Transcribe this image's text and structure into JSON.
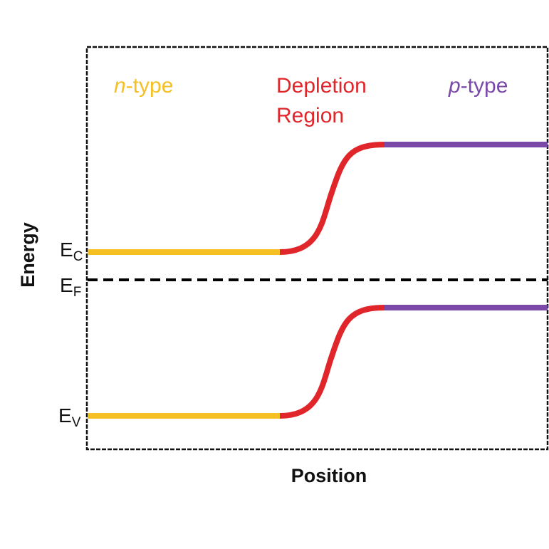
{
  "diagram": {
    "regions": {
      "n_type": {
        "italic_part": "n",
        "rest": "-type"
      },
      "depletion": {
        "line1": "Depletion",
        "line2": "Region"
      },
      "p_type": {
        "italic_part": "p",
        "rest": "-type"
      }
    },
    "axes": {
      "x_label": "Position",
      "y_label": "Energy"
    },
    "levels": {
      "conduction": {
        "main": "E",
        "sub": "C"
      },
      "fermi": {
        "main": "E",
        "sub": "F"
      },
      "valence": {
        "main": "E",
        "sub": "V"
      }
    },
    "colors": {
      "n_type": "#F5C024",
      "depletion": "#E0262B",
      "p_type": "#7B49A8",
      "frame": "#111111",
      "fermi_line": "#000000"
    }
  }
}
